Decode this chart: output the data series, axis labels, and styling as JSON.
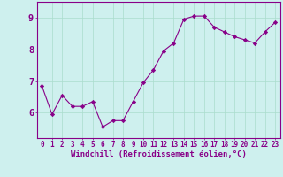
{
  "x": [
    0,
    1,
    2,
    3,
    4,
    5,
    6,
    7,
    8,
    9,
    10,
    11,
    12,
    13,
    14,
    15,
    16,
    17,
    18,
    19,
    20,
    21,
    22,
    23
  ],
  "y": [
    6.85,
    5.95,
    6.55,
    6.2,
    6.2,
    6.35,
    5.55,
    5.75,
    5.75,
    6.35,
    6.95,
    7.35,
    7.95,
    8.2,
    8.95,
    9.05,
    9.05,
    8.7,
    8.55,
    8.4,
    8.3,
    8.2,
    8.55,
    8.85
  ],
  "line_color": "#880088",
  "marker": "D",
  "marker_size": 2.2,
  "bg_color": "#cef0ee",
  "grid_color": "#aaddcc",
  "xlabel": "Windchill (Refroidissement éolien,°C)",
  "ylabel_ticks": [
    6,
    7,
    8,
    9
  ],
  "xtick_labels": [
    "0",
    "1",
    "2",
    "3",
    "4",
    "5",
    "6",
    "7",
    "8",
    "9",
    "10",
    "11",
    "12",
    "13",
    "14",
    "15",
    "16",
    "17",
    "18",
    "19",
    "20",
    "21",
    "22",
    "23"
  ],
  "ylim": [
    5.2,
    9.5
  ],
  "xlim": [
    -0.5,
    23.5
  ],
  "label_color": "#880088",
  "tick_color": "#880088",
  "xlabel_fontsize": 6.5,
  "ytick_fontsize": 7.5,
  "xtick_fontsize": 5.5
}
